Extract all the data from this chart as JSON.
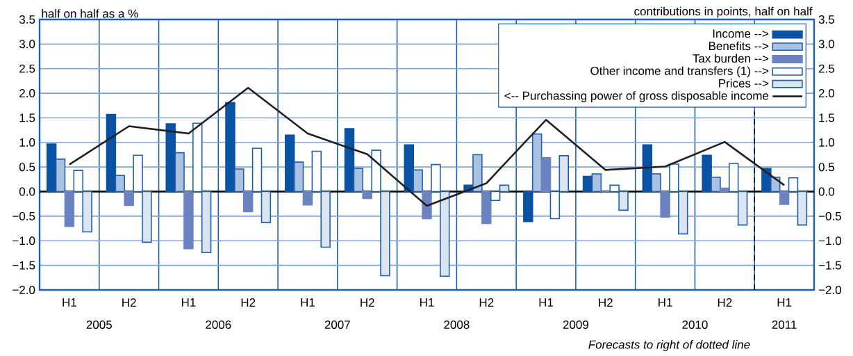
{
  "chart_data": {
    "type": "bar",
    "ylabel": "half on half as a %",
    "y2label": "contributions in points, half on half",
    "categories": [
      "H1",
      "H2",
      "H1",
      "H2",
      "H1",
      "H2",
      "H1",
      "H2",
      "H1",
      "H2",
      "H1",
      "H2",
      "H1"
    ],
    "series": [
      {
        "name": "Income -->",
        "color": "#0a52a3",
        "axis": "y2",
        "values": [
          0.97,
          1.57,
          1.38,
          1.81,
          1.15,
          1.28,
          0.95,
          0.13,
          -0.61,
          0.31,
          0.95,
          0.74,
          0.47
        ]
      },
      {
        "name": "Benefits -->",
        "color": "#1f5fae",
        "axis": "y2",
        "values": [
          0.66,
          0.33,
          0.79,
          0.46,
          0.6,
          0.47,
          0.44,
          0.75,
          1.17,
          0.36,
          0.36,
          0.29,
          0.29
        ]
      },
      {
        "name": "Tax burden -->",
        "color": "#6b83c1",
        "axis": "y2",
        "values": [
          -0.71,
          -0.28,
          -1.16,
          -0.41,
          -0.27,
          -0.14,
          -0.55,
          -0.65,
          0.69,
          0.0,
          -0.52,
          0.07,
          -0.26
        ]
      },
      {
        "name": "Other income and transfers (1) -->",
        "color": "#1f5fae",
        "axis": "y2",
        "values": [
          0.43,
          0.74,
          1.39,
          0.88,
          0.82,
          0.84,
          0.55,
          -0.18,
          -0.55,
          0.13,
          0.56,
          0.57,
          0.28
        ]
      },
      {
        "name": "Prices -->",
        "color": "#1f5fae",
        "axis": "y2",
        "values": [
          -0.82,
          -1.03,
          -1.24,
          -0.63,
          -1.13,
          -1.71,
          -1.72,
          0.13,
          0.73,
          -0.38,
          -0.86,
          -0.68,
          -0.68
        ]
      },
      {
        "name": "<-- Purchassing power of gross disposable income",
        "type": "line",
        "color": "#231f20",
        "axis": "y",
        "values": [
          0.55,
          1.33,
          1.18,
          2.11,
          1.18,
          0.76,
          -0.29,
          0.17,
          1.46,
          0.44,
          0.51,
          1.01,
          0.13
        ]
      }
    ],
    "ylim": [
      -2,
      3.5
    ],
    "yticks": [
      {
        "value": -2,
        "label": "−2.0"
      },
      {
        "value": -1.5,
        "label": "−1.5"
      },
      {
        "value": -1,
        "label": "−1.0"
      },
      {
        "value": -0.5,
        "label": "−0.5"
      },
      {
        "value": 0,
        "label": "0.0"
      },
      {
        "value": 0.5,
        "label": "0.5"
      },
      {
        "value": 1,
        "label": "1.0"
      },
      {
        "value": 1.5,
        "label": "1.5"
      },
      {
        "value": 2,
        "label": "2.0"
      },
      {
        "value": 2.5,
        "label": "2.5"
      },
      {
        "value": 3,
        "label": "3.0"
      },
      {
        "value": 3.5,
        "label": "3.5"
      }
    ],
    "y2lim": [
      -2,
      3.5
    ],
    "y2ticks": [
      {
        "value": -2,
        "label": "−2.0"
      },
      {
        "value": -1.5,
        "label": "−1.5"
      },
      {
        "value": -1,
        "label": "−1.0"
      },
      {
        "value": -0.5,
        "label": "−0.5"
      },
      {
        "value": 0,
        "label": "0.0"
      },
      {
        "value": 0.5,
        "label": "0.5"
      },
      {
        "value": 1,
        "label": "1.0"
      },
      {
        "value": 1.5,
        "label": "1.5"
      },
      {
        "value": 2,
        "label": "2.0"
      },
      {
        "value": 2.5,
        "label": "2.5"
      },
      {
        "value": 3,
        "label": "3.0"
      },
      {
        "value": 3.5,
        "label": "3.5"
      }
    ],
    "annotations": [
      "2005",
      "2006",
      "2007",
      "2008",
      "2009",
      "2010",
      "2011",
      "Forecasts to right of dotted line"
    ],
    "grid": true,
    "legend": "top right"
  }
}
